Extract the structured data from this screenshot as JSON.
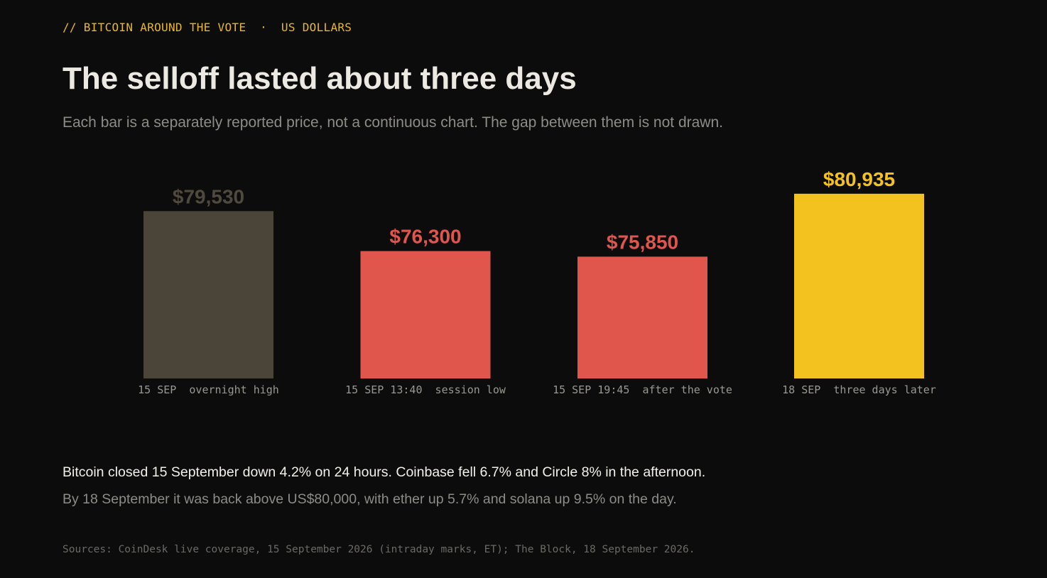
{
  "header": {
    "kicker": "// BITCOIN AROUND THE VOTE  ·  US DOLLARS",
    "title": "The selloff lasted about three days",
    "subtitle": "Each bar is a separately reported price, not a continuous chart. The gap between them is not drawn."
  },
  "chart_data": {
    "type": "bar",
    "categories": [
      "15 SEP  overnight high",
      "15 SEP 13:40  session low",
      "15 SEP 19:45  after the vote",
      "18 SEP  three days later"
    ],
    "values": [
      79530,
      76300,
      75850,
      80935
    ],
    "value_labels": [
      "$79,530",
      "$76,300",
      "$75,850",
      "$80,935"
    ],
    "colors": [
      "#4a4538",
      "#e0564c",
      "#e0564c",
      "#f3c21f"
    ],
    "label_colors": [
      "#4f4a3d",
      "#e0564c",
      "#e0564c",
      "#f3c21f"
    ],
    "ylim": [
      66000,
      81500
    ],
    "grid": false,
    "legend": "none"
  },
  "notes": {
    "line1": "Bitcoin closed 15 September down 4.2% on 24 hours. Coinbase fell 6.7% and Circle 8% in the afternoon.",
    "line2": "By 18 September it was back above US$80,000, with ether up 5.7% and solana up 9.5% on the day."
  },
  "sources": "Sources: CoinDesk live coverage, 15 September 2026 (intraday marks, ET); The Block, 18 September 2026."
}
